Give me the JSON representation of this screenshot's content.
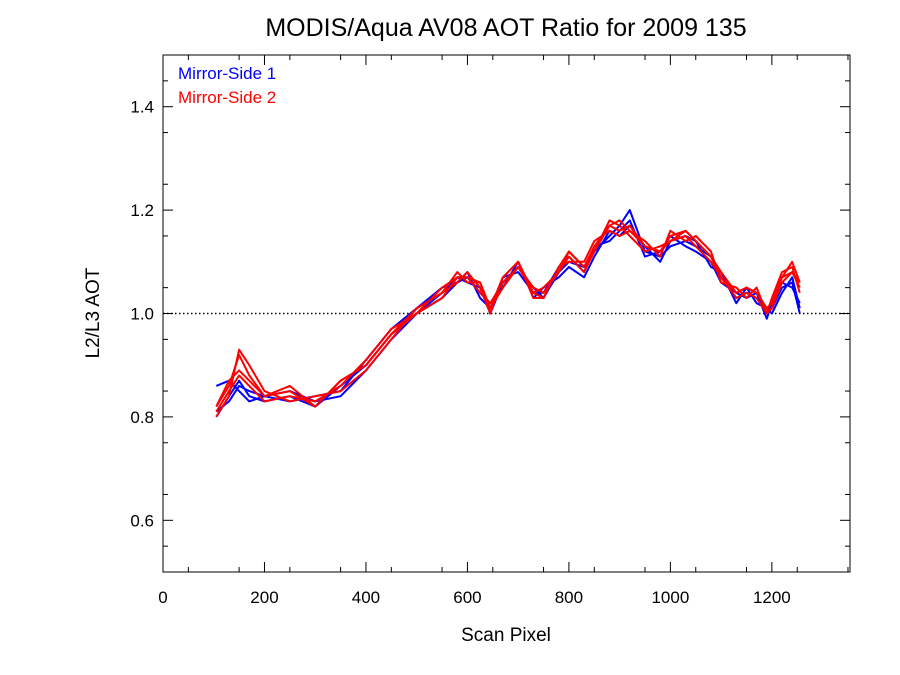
{
  "chart_data": {
    "type": "line",
    "title": "MODIS/Aqua AV08 AOT Ratio for 2009 135",
    "xlabel": "Scan Pixel",
    "ylabel": "L2/L3 AOT",
    "xlim": [
      0,
      1354
    ],
    "ylim": [
      0.5,
      1.5
    ],
    "xticks": [
      0,
      200,
      400,
      600,
      800,
      1000,
      1200
    ],
    "xtick_labels": [
      "0",
      "200",
      "400",
      "600",
      "800",
      "1000",
      "1200"
    ],
    "yticks": [
      0.6,
      0.8,
      1.0,
      1.2,
      1.4
    ],
    "ytick_labels": [
      "0.6",
      "0.8",
      "1.0",
      "1.2",
      "1.4"
    ],
    "reference_line": 1.0,
    "legend_position": "top-left",
    "colors": {
      "mirror_side_1": "#0000ff",
      "mirror_side_2": "#ff0000"
    },
    "legend": [
      {
        "label": "Mirror-Side 1",
        "color": "#0000ff"
      },
      {
        "label": "Mirror-Side 2",
        "color": "#ff0000"
      }
    ],
    "x": [
      105,
      130,
      150,
      170,
      200,
      250,
      300,
      350,
      400,
      450,
      500,
      550,
      580,
      600,
      625,
      645,
      670,
      700,
      730,
      750,
      780,
      800,
      830,
      850,
      880,
      900,
      920,
      950,
      980,
      1000,
      1030,
      1050,
      1080,
      1100,
      1130,
      1150,
      1170,
      1190,
      1200,
      1220,
      1240,
      1255
    ],
    "series": [
      {
        "group": "Mirror-Side 1",
        "color": "#0000ff",
        "values": [
          0.8,
          0.84,
          0.87,
          0.84,
          0.83,
          0.84,
          0.82,
          0.86,
          0.9,
          0.96,
          1.0,
          1.04,
          1.07,
          1.06,
          1.05,
          1.0,
          1.06,
          1.09,
          1.05,
          1.03,
          1.08,
          1.1,
          1.09,
          1.12,
          1.15,
          1.17,
          1.2,
          1.12,
          1.11,
          1.13,
          1.14,
          1.13,
          1.11,
          1.07,
          1.03,
          1.04,
          1.03,
          1.0,
          1.01,
          1.05,
          1.06,
          1.0
        ]
      },
      {
        "group": "Mirror-Side 1",
        "color": "#0000ff",
        "values": [
          0.86,
          0.87,
          0.85,
          0.83,
          0.84,
          0.83,
          0.84,
          0.85,
          0.91,
          0.97,
          1.01,
          1.05,
          1.06,
          1.08,
          1.03,
          1.01,
          1.07,
          1.08,
          1.04,
          1.04,
          1.09,
          1.11,
          1.08,
          1.13,
          1.14,
          1.16,
          1.18,
          1.11,
          1.12,
          1.15,
          1.13,
          1.12,
          1.1,
          1.06,
          1.04,
          1.03,
          1.04,
          0.99,
          1.02,
          1.06,
          1.05,
          1.02
        ]
      },
      {
        "group": "Mirror-Side 1",
        "color": "#0000ff",
        "values": [
          0.81,
          0.83,
          0.86,
          0.85,
          0.84,
          0.85,
          0.83,
          0.84,
          0.89,
          0.95,
          1.0,
          1.03,
          1.06,
          1.07,
          1.04,
          1.02,
          1.05,
          1.1,
          1.03,
          1.05,
          1.07,
          1.09,
          1.07,
          1.11,
          1.16,
          1.15,
          1.17,
          1.13,
          1.1,
          1.14,
          1.15,
          1.14,
          1.09,
          1.08,
          1.02,
          1.05,
          1.02,
          1.01,
          1.0,
          1.04,
          1.07,
          1.01
        ]
      },
      {
        "group": "Mirror-Side 2",
        "color": "#ff0000",
        "values": [
          0.82,
          0.86,
          0.92,
          0.88,
          0.84,
          0.85,
          0.82,
          0.87,
          0.9,
          0.96,
          1.01,
          1.04,
          1.08,
          1.06,
          1.06,
          1.01,
          1.07,
          1.1,
          1.04,
          1.03,
          1.09,
          1.12,
          1.09,
          1.13,
          1.17,
          1.16,
          1.17,
          1.13,
          1.12,
          1.15,
          1.16,
          1.14,
          1.11,
          1.08,
          1.04,
          1.05,
          1.04,
          1.01,
          1.02,
          1.07,
          1.1,
          1.06
        ]
      },
      {
        "group": "Mirror-Side 2",
        "color": "#ff0000",
        "values": [
          0.81,
          0.85,
          0.88,
          0.86,
          0.83,
          0.84,
          0.83,
          0.86,
          0.91,
          0.97,
          1.0,
          1.05,
          1.07,
          1.07,
          1.04,
          1.02,
          1.06,
          1.09,
          1.05,
          1.04,
          1.08,
          1.11,
          1.08,
          1.12,
          1.18,
          1.17,
          1.15,
          1.12,
          1.13,
          1.14,
          1.15,
          1.13,
          1.1,
          1.07,
          1.03,
          1.04,
          1.03,
          1.0,
          1.01,
          1.06,
          1.08,
          1.05
        ]
      },
      {
        "group": "Mirror-Side 2",
        "color": "#ff0000",
        "values": [
          0.8,
          0.84,
          0.93,
          0.9,
          0.85,
          0.83,
          0.84,
          0.85,
          0.89,
          0.95,
          1.01,
          1.04,
          1.06,
          1.08,
          1.05,
          1.0,
          1.07,
          1.1,
          1.03,
          1.03,
          1.09,
          1.1,
          1.1,
          1.14,
          1.16,
          1.15,
          1.16,
          1.14,
          1.11,
          1.16,
          1.14,
          1.15,
          1.12,
          1.06,
          1.05,
          1.03,
          1.05,
          1.0,
          1.03,
          1.08,
          1.09,
          1.04
        ]
      },
      {
        "group": "Mirror-Side 2",
        "color": "#ff0000",
        "values": [
          0.82,
          0.87,
          0.89,
          0.87,
          0.84,
          0.86,
          0.82,
          0.87,
          0.9,
          0.96,
          1.0,
          1.03,
          1.07,
          1.07,
          1.06,
          1.01,
          1.05,
          1.09,
          1.04,
          1.05,
          1.08,
          1.12,
          1.09,
          1.12,
          1.17,
          1.18,
          1.16,
          1.13,
          1.12,
          1.14,
          1.16,
          1.14,
          1.11,
          1.07,
          1.04,
          1.05,
          1.04,
          1.01,
          1.02,
          1.07,
          1.08,
          1.06
        ]
      }
    ]
  }
}
